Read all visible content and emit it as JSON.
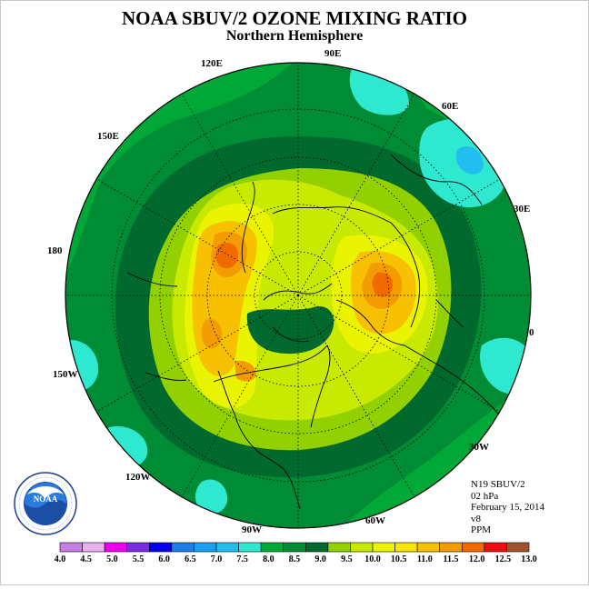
{
  "header": {
    "title": "NOAA SBUV/2 OZONE MIXING RATIO",
    "subtitle": "Northern Hemisphere"
  },
  "map": {
    "projection": "north polar stereographic",
    "longitude_labels": [
      "90E",
      "120E",
      "60E",
      "150E",
      "30E",
      "180",
      "0",
      "150W",
      "30W",
      "120W",
      "60W",
      "90W"
    ]
  },
  "info": {
    "satellite": "N19 SBUV/2",
    "pressure": "02 hPa",
    "date": "February 15, 2014",
    "version": "v8",
    "units": "PPM"
  },
  "colorbar": {
    "colors": [
      "#c77fe6",
      "#e8b0ee",
      "#ee00ee",
      "#7a2de0",
      "#0000ee",
      "#1e7ee8",
      "#199ef0",
      "#23bef0",
      "#2ee8d0",
      "#00a838",
      "#008b35",
      "#006a2e",
      "#92d000",
      "#c8ea00",
      "#eaf300",
      "#fae500",
      "#f7c000",
      "#f29c00",
      "#f06a00",
      "#ee1010",
      "#a0522d"
    ],
    "tick_labels": [
      "4.0",
      "4.5",
      "5.0",
      "5.5",
      "6.0",
      "6.5",
      "7.0",
      "7.5",
      "8.0",
      "8.5",
      "9.0",
      "9.5",
      "10.0",
      "10.5",
      "11.0",
      "11.5",
      "12.0",
      "12.5",
      "13.0"
    ]
  },
  "logo": {
    "text": "NOAA",
    "ring_text": "NATIONAL OCEANIC AND ATMOSPHERIC ADMINISTRATION · U.S. DEPARTMENT OF COMMERCE"
  }
}
